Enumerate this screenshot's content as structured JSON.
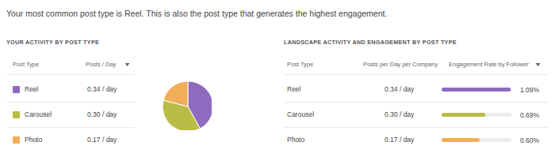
{
  "header": {
    "text": "Your most common post type is Reel. This is also the post type that generates the highest engagement."
  },
  "activity": {
    "title": "YOUR ACTIVITY BY POST TYPE",
    "columns": [
      "Post Type",
      "Posts / Day"
    ],
    "rows": [
      [
        "Reel",
        "0.34 / day"
      ],
      [
        "Carousel",
        "0.30 / day"
      ],
      [
        "Photo",
        "0.17 / day"
      ]
    ]
  },
  "landscape": {
    "title": "LANDSCAPE ACTIVITY AND ENGAGEMENT BY POST TYPE",
    "columns": [
      "Post Type",
      "Posts per Day per Company",
      "Engagement Rate by Follower"
    ],
    "rows": [
      [
        "Reel",
        "0.34 / day"
      ],
      [
        "Carousel",
        "0.30 / day"
      ],
      [
        "Photo",
        "0.17 / day"
      ]
    ]
  },
  "chart_data": [
    {
      "type": "pie",
      "categories": [
        "Reel",
        "Carousel",
        "Photo"
      ],
      "values": [
        0.34,
        0.3,
        0.17
      ],
      "colors": [
        "#8f6bbf",
        "#b9bd45",
        "#f1ae58"
      ]
    },
    {
      "type": "bar",
      "orientation": "horizontal",
      "categories": [
        "Reel",
        "Carousel",
        "Photo"
      ],
      "values": [
        1.09,
        0.69,
        0.6
      ],
      "value_labels": [
        "1.09%",
        "0.69%",
        "0.60%"
      ],
      "data_labels": true,
      "colors": [
        "#8f6bbf",
        "#b9bd45",
        "#f1ae58"
      ],
      "xlim": [
        0,
        1.1
      ],
      "tick_labels": false
    }
  ]
}
